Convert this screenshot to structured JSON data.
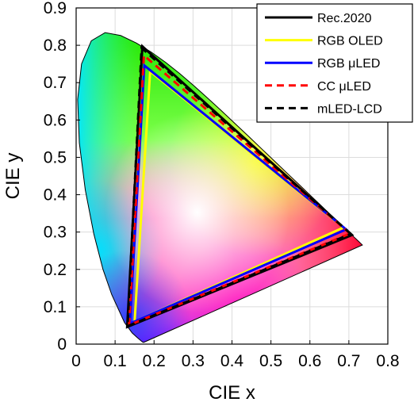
{
  "chart_data": {
    "type": "line",
    "title": "",
    "xlabel": "CIE x",
    "ylabel": "CIE y",
    "xlim": [
      0,
      0.8
    ],
    "ylim": [
      0,
      0.9
    ],
    "xticks": [
      0,
      0.1,
      0.2,
      0.3,
      0.4,
      0.5,
      0.6,
      0.7,
      0.8
    ],
    "yticks": [
      0,
      0.1,
      0.2,
      0.3,
      0.4,
      0.5,
      0.6,
      0.7,
      0.8,
      0.9
    ],
    "xtick_labels": [
      "0",
      "0.1",
      "0.2",
      "0.3",
      "0.4",
      "0.5",
      "0.6",
      "0.7",
      "0.8"
    ],
    "ytick_labels": [
      "0",
      "0.1",
      "0.2",
      "0.3",
      "0.4",
      "0.5",
      "0.6",
      "0.7",
      "0.8",
      "0.9"
    ],
    "grid": true,
    "legend_position": "top-right",
    "background": "CIE 1931 chromaticity diagram",
    "spectral_locus": [
      [
        0.1741,
        0.005
      ],
      [
        0.1738,
        0.0049
      ],
      [
        0.1736,
        0.0049
      ],
      [
        0.1733,
        0.0048
      ],
      [
        0.1726,
        0.0048
      ],
      [
        0.1714,
        0.0051
      ],
      [
        0.1689,
        0.0069
      ],
      [
        0.1644,
        0.0109
      ],
      [
        0.1566,
        0.0177
      ],
      [
        0.144,
        0.0297
      ],
      [
        0.1241,
        0.0578
      ],
      [
        0.0913,
        0.1327
      ],
      [
        0.0687,
        0.2007
      ],
      [
        0.0454,
        0.295
      ],
      [
        0.0235,
        0.4127
      ],
      [
        0.0082,
        0.5384
      ],
      [
        0.0039,
        0.6548
      ],
      [
        0.0139,
        0.7502
      ],
      [
        0.0389,
        0.812
      ],
      [
        0.0743,
        0.8338
      ],
      [
        0.1142,
        0.8262
      ],
      [
        0.1547,
        0.8059
      ],
      [
        0.1929,
        0.7816
      ],
      [
        0.2296,
        0.7543
      ],
      [
        0.2658,
        0.7243
      ],
      [
        0.3016,
        0.6923
      ],
      [
        0.3373,
        0.6589
      ],
      [
        0.3731,
        0.6245
      ],
      [
        0.4087,
        0.5896
      ],
      [
        0.4441,
        0.5547
      ],
      [
        0.4788,
        0.5202
      ],
      [
        0.5125,
        0.4866
      ],
      [
        0.5448,
        0.4544
      ],
      [
        0.5752,
        0.4242
      ],
      [
        0.6029,
        0.3965
      ],
      [
        0.627,
        0.3725
      ],
      [
        0.6482,
        0.3514
      ],
      [
        0.6658,
        0.334
      ],
      [
        0.6801,
        0.3197
      ],
      [
        0.6915,
        0.3083
      ],
      [
        0.7006,
        0.2993
      ],
      [
        0.7079,
        0.292
      ],
      [
        0.714,
        0.2859
      ],
      [
        0.719,
        0.2809
      ],
      [
        0.723,
        0.277
      ],
      [
        0.726,
        0.274
      ],
      [
        0.7283,
        0.2717
      ],
      [
        0.73,
        0.27
      ],
      [
        0.7311,
        0.2689
      ],
      [
        0.732,
        0.268
      ],
      [
        0.7327,
        0.2673
      ],
      [
        0.7334,
        0.2666
      ],
      [
        0.734,
        0.266
      ],
      [
        0.7344,
        0.2656
      ],
      [
        0.7346,
        0.2654
      ],
      [
        0.7347,
        0.2653
      ]
    ],
    "series": [
      {
        "name": "Rec.2020",
        "color": "#000000",
        "dash": "solid",
        "points": [
          [
            0.708,
            0.292
          ],
          [
            0.17,
            0.797
          ],
          [
            0.131,
            0.046
          ]
        ]
      },
      {
        "name": "RGB OLED",
        "color": "#ffff00",
        "dash": "solid",
        "points": [
          [
            0.686,
            0.312
          ],
          [
            0.19,
            0.73
          ],
          [
            0.15,
            0.06
          ]
        ]
      },
      {
        "name": "RGB μLED",
        "color": "#0000ff",
        "dash": "solid",
        "points": [
          [
            0.693,
            0.307
          ],
          [
            0.175,
            0.746
          ],
          [
            0.138,
            0.055
          ]
        ]
      },
      {
        "name": "CC μLED",
        "color": "#ff0000",
        "dash": "dashed",
        "points": [
          [
            0.703,
            0.296
          ],
          [
            0.174,
            0.773
          ],
          [
            0.136,
            0.051
          ]
        ]
      },
      {
        "name": "mLED-LCD",
        "color": "#000000",
        "dash": "dashed",
        "points": [
          [
            0.705,
            0.295
          ],
          [
            0.168,
            0.793
          ],
          [
            0.132,
            0.048
          ]
        ]
      }
    ]
  }
}
